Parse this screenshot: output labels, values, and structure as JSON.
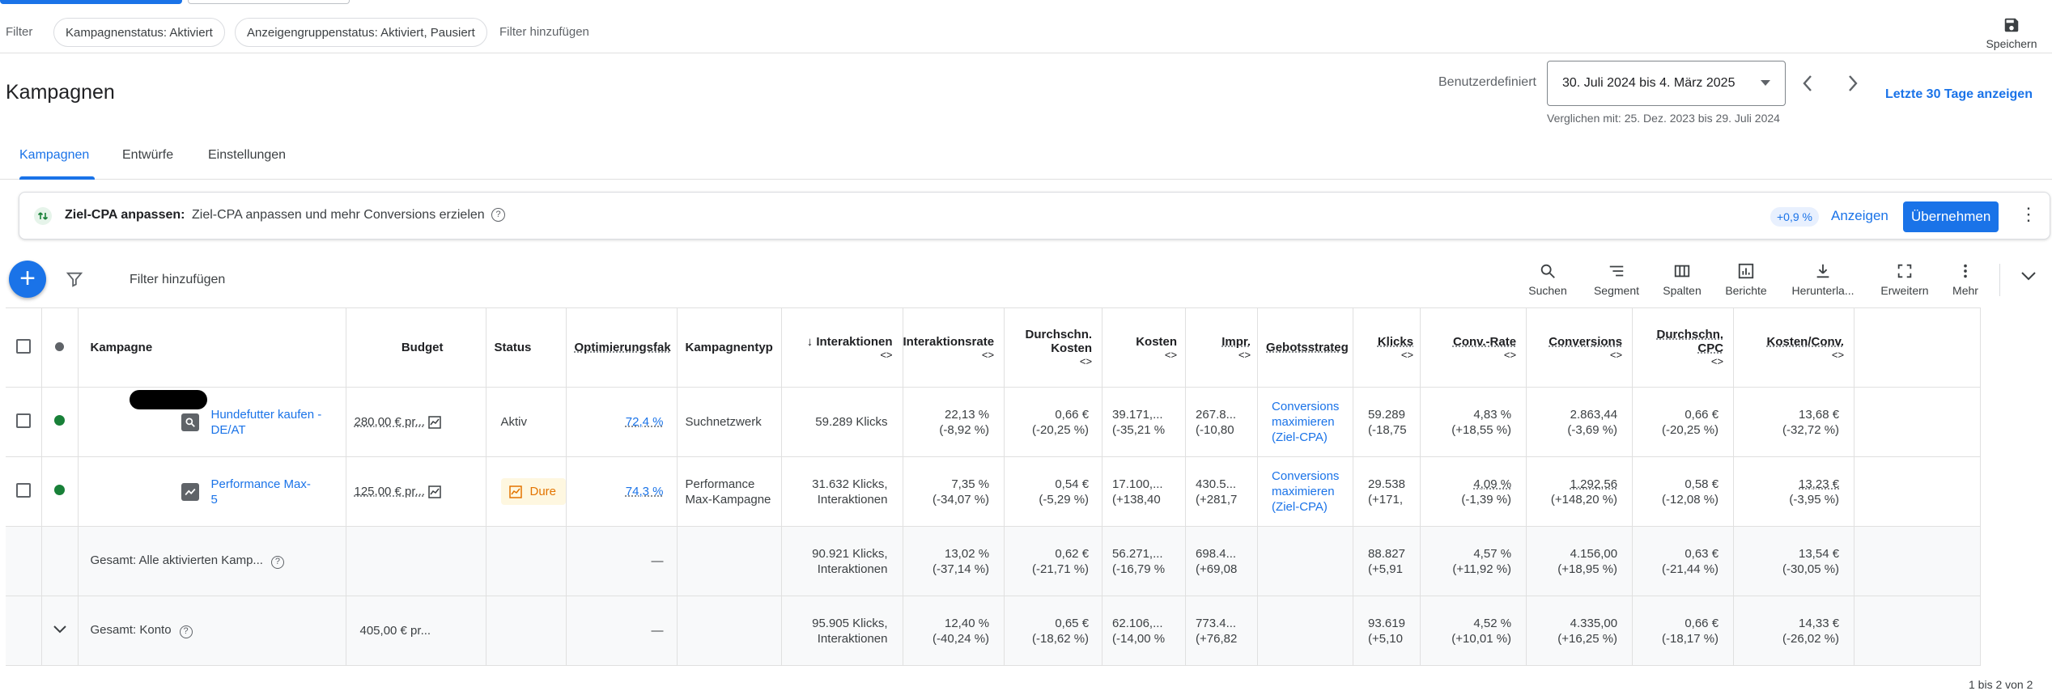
{
  "filter_bar": {
    "label": "Filter",
    "chips": [
      "Kampagnenstatus: Aktiviert",
      "Anzeigengruppenstatus: Aktiviert, Pausiert"
    ],
    "add_filter": "Filter hinzufügen",
    "save_label": "Speichern"
  },
  "header": {
    "title": "Kampagnen",
    "date_label": "Benutzerdefiniert",
    "date_range": "30. Juli 2024 bis 4. März 2025",
    "compare": "Verglichen mit: 25. Dez. 2023 bis 29. Juli 2024",
    "last30": "Letzte 30 Tage anzeigen"
  },
  "tabs": [
    "Kampagnen",
    "Entwürfe",
    "Einstellungen"
  ],
  "recommendation": {
    "title": "Ziel-CPA anpassen:",
    "description": "Ziel-CPA anpassen und mehr Conversions erzielen",
    "badge": "+0,9 %",
    "show": "Anzeigen",
    "apply": "Übernehmen"
  },
  "toolbar": {
    "filter": "Filter hinzufügen",
    "items": [
      "Suchen",
      "Segment",
      "Spalten",
      "Berichte",
      "Herunterla...",
      "Erweitern",
      "Mehr"
    ]
  },
  "table": {
    "headers": {
      "campaign": "Kampagne",
      "budget": "Budget",
      "status": "Status",
      "optim": "Optimierungsfak",
      "type": "Kampagnentyp",
      "interactions": "Interaktionen",
      "interaction_rate": "Interaktionsrate",
      "avg_cost": "Durchschn. Kosten",
      "cost": "Kosten",
      "impr": "Impr.",
      "bidding": "Gebotsstrateg",
      "clicks": "Klicks",
      "conv_rate": "Conv.-Rate",
      "conversions": "Conversions",
      "avg_cpc": "Durchschn. CPC",
      "cost_conv": "Kosten/Conv.",
      "sort_arrow": "↓",
      "sort_glyph": "<>"
    },
    "rows": [
      {
        "name": "Hundefutter kaufen - DE/AT",
        "budget": "280,00 € pr...",
        "status": "Aktiv",
        "optim": "72,4 %",
        "type": "Suchnetzwerk",
        "interactions": "59.289 Klicks",
        "interaction_rate": "22,13 %",
        "interaction_rate_d": "(-8,92 %)",
        "avg_cost": "0,66 €",
        "avg_cost_d": "(-20,25 %)",
        "cost": "39.171,...",
        "cost_d": "(-35,21 %",
        "impr": "267.8...",
        "impr_d": "(-10,80",
        "bidding": "Conversions maximieren (Ziel-CPA)",
        "clicks": "59.289",
        "clicks_d": "(-18,75",
        "conv_rate": "4,83 %",
        "conv_rate_d": "(+18,55 %)",
        "conversions": "2.863,44",
        "conversions_d": "(-3,69 %)",
        "avg_cpc": "0,66 €",
        "avg_cpc_d": "(-20,25 %)",
        "cost_conv": "13,68 €",
        "cost_conv_d": "(-32,72 %)"
      },
      {
        "name": "Performance Max-5",
        "budget": "125,00 € pr...",
        "status": "Dure",
        "optim": "74,3 %",
        "type": "Performance Max-Kampagne",
        "interactions": "31.632 Klicks, Interaktionen",
        "interaction_rate": "7,35 %",
        "interaction_rate_d": "(-34,07 %)",
        "avg_cost": "0,54 €",
        "avg_cost_d": "(-5,29 %)",
        "cost": "17.100,...",
        "cost_d": "(+138,40",
        "impr": "430.5...",
        "impr_d": "(+281,7",
        "bidding": "Conversions maximieren (Ziel-CPA)",
        "clicks": "29.538",
        "clicks_d": "(+171,",
        "conv_rate": "4,09 %",
        "conv_rate_d": "(-1,39 %)",
        "conversions": "1.292,56",
        "conversions_d": "(+148,20 %)",
        "avg_cpc": "0,58 €",
        "avg_cpc_d": "(-12,08 %)",
        "cost_conv": "13,23 €",
        "cost_conv_d": "(-3,95 %)"
      }
    ],
    "totals": [
      {
        "name": "Gesamt: Alle aktivierten Kamp...",
        "budget": "",
        "optim": "—",
        "interactions": "90.921 Klicks, Interaktionen",
        "interaction_rate": "13,02 %",
        "interaction_rate_d": "(-37,14 %)",
        "avg_cost": "0,62 €",
        "avg_cost_d": "(-21,71 %)",
        "cost": "56.271,...",
        "cost_d": "(-16,79 %",
        "impr": "698.4...",
        "impr_d": "(+69,08",
        "clicks": "88.827",
        "clicks_d": "(+5,91",
        "conv_rate": "4,57 %",
        "conv_rate_d": "(+11,92 %)",
        "conversions": "4.156,00",
        "conversions_d": "(+18,95 %)",
        "avg_cpc": "0,63 €",
        "avg_cpc_d": "(-21,44 %)",
        "cost_conv": "13,54 €",
        "cost_conv_d": "(-30,05 %)"
      },
      {
        "name": "Gesamt: Konto",
        "budget": "405,00 € pr...",
        "optim": "—",
        "interactions": "95.905 Klicks, Interaktionen",
        "interaction_rate": "12,40 %",
        "interaction_rate_d": "(-40,24 %)",
        "avg_cost": "0,65 €",
        "avg_cost_d": "(-18,62 %)",
        "cost": "62.106,...",
        "cost_d": "(-14,00 %",
        "impr": "773.4...",
        "impr_d": "(+76,82",
        "clicks": "93.619",
        "clicks_d": "(+5,10",
        "conv_rate": "4,52 %",
        "conv_rate_d": "(+10,01 %)",
        "conversions": "4.335,00",
        "conversions_d": "(+16,25 %)",
        "avg_cpc": "0,66 €",
        "avg_cpc_d": "(-18,17 %)",
        "cost_conv": "14,33 €",
        "cost_conv_d": "(-26,02 %)"
      }
    ],
    "pagination": "1 bis 2 von 2"
  },
  "colors": {
    "accent": "#1a73e8",
    "active_status": "#188038",
    "warning": "#e37400"
  }
}
